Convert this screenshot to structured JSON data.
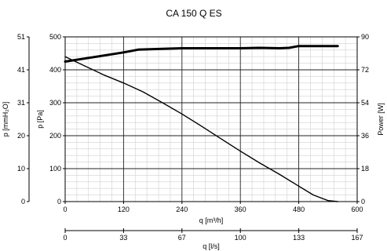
{
  "chart_data": {
    "type": "line",
    "title": "CA 150 Q ES",
    "x_axis": {
      "label": "q [m³/h]",
      "range": [
        0,
        600
      ],
      "ticks": [
        0,
        120,
        240,
        360,
        480,
        600
      ]
    },
    "x2_axis": {
      "label": "q [l/s]",
      "range": [
        0,
        167
      ],
      "ticks": [
        "0",
        "33",
        "67",
        "100",
        "133",
        "167"
      ]
    },
    "y_axis": {
      "label": "p [Pa]",
      "range": [
        0,
        500
      ],
      "ticks": [
        0,
        100,
        200,
        300,
        400,
        500
      ]
    },
    "y_left2_axis": {
      "label": "p [mmH₂O]",
      "ticks": [
        "0",
        "10",
        "20",
        "31",
        "41",
        "51"
      ]
    },
    "y_right_axis": {
      "label": "Power [W]",
      "range": [
        0,
        90
      ],
      "ticks": [
        "0",
        "18",
        "36",
        "54",
        "72",
        "90"
      ]
    },
    "grid": true,
    "series": [
      {
        "axis": "y",
        "color": "#000000",
        "stroke_width": 1.4,
        "x": [
          0,
          40,
          80,
          120,
          160,
          200,
          240,
          280,
          320,
          360,
          400,
          440,
          480,
          510,
          540,
          560
        ],
        "y": [
          440,
          412,
          384,
          360,
          333,
          300,
          266,
          229,
          191,
          153,
          117,
          83,
          47,
          20,
          3,
          0
        ]
      },
      {
        "axis": "y_right",
        "color": "#000000",
        "stroke_width": 3,
        "x": [
          0,
          60,
          120,
          150,
          200,
          240,
          280,
          320,
          360,
          400,
          440,
          460,
          480,
          520,
          560
        ],
        "y": [
          76.5,
          79,
          81.5,
          83,
          83.5,
          83.8,
          83.8,
          83.8,
          83.8,
          84,
          83.8,
          84,
          85,
          85,
          85
        ]
      }
    ]
  }
}
